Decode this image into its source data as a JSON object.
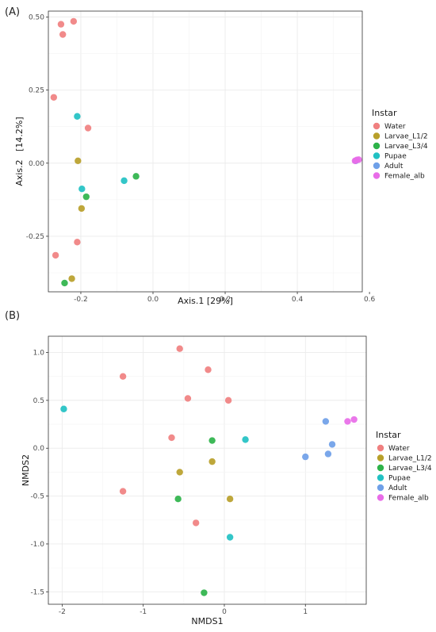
{
  "colors": {
    "Water": "#F08080",
    "Larvae_L1/2": "#B8A02A",
    "Larvae_L3/4": "#2EB34A",
    "Pupae": "#22C1C3",
    "Adult": "#6FA0E8",
    "Female_alb": "#E86CE8"
  },
  "chart_data": [
    {
      "type": "scatter",
      "panel_label": "(A)",
      "xlabel": "Axis.1   [29%]",
      "ylabel": "Axis.2   [14.2%]",
      "xlim": [
        -0.29,
        0.58
      ],
      "ylim": [
        -0.44,
        0.52
      ],
      "xticks": [
        -0.2,
        0.0,
        0.2,
        0.4,
        0.6
      ],
      "xtick_labels": [
        "-0.2",
        "0.0",
        "0.2",
        "0.4",
        "0.6"
      ],
      "yticks": [
        -0.25,
        0.0,
        0.25,
        0.5
      ],
      "ytick_labels": [
        "-0.25",
        "0.00",
        "0.25",
        "0.50"
      ],
      "grid": true,
      "legend": {
        "title": "Instar",
        "position": "right",
        "entries": [
          "Water",
          "Larvae_L1/2",
          "Larvae_L3/4",
          "Pupae",
          "Adult",
          "Female_alb"
        ]
      },
      "series": [
        {
          "name": "Water",
          "points": [
            [
              -0.255,
              0.475
            ],
            [
              -0.25,
              0.44
            ],
            [
              -0.22,
              0.485
            ],
            [
              -0.275,
              0.225
            ],
            [
              -0.18,
              0.12
            ],
            [
              -0.27,
              -0.315
            ],
            [
              -0.21,
              -0.27
            ]
          ]
        },
        {
          "name": "Larvae_L1/2",
          "points": [
            [
              -0.208,
              0.008
            ],
            [
              -0.198,
              -0.155
            ],
            [
              -0.225,
              -0.395
            ]
          ]
        },
        {
          "name": "Larvae_L3/4",
          "points": [
            [
              -0.185,
              -0.115
            ],
            [
              -0.047,
              -0.045
            ],
            [
              -0.245,
              -0.41
            ]
          ]
        },
        {
          "name": "Pupae",
          "points": [
            [
              -0.21,
              0.16
            ],
            [
              -0.197,
              -0.088
            ],
            [
              -0.08,
              -0.06
            ]
          ]
        },
        {
          "name": "Adult",
          "points": [
            [
              0.562,
              0.008
            ]
          ]
        },
        {
          "name": "Female_alb",
          "points": [
            [
              0.56,
              0.008
            ],
            [
              0.565,
              0.011
            ],
            [
              0.57,
              0.012
            ]
          ]
        }
      ]
    },
    {
      "type": "scatter",
      "panel_label": "(B)",
      "xlabel": "NMDS1",
      "ylabel": "NMDS2",
      "xlim": [
        -2.17,
        1.75
      ],
      "ylim": [
        -1.63,
        1.17
      ],
      "xticks": [
        -2,
        -1,
        0,
        1
      ],
      "xtick_labels": [
        "-2",
        "-1",
        "0",
        "1"
      ],
      "yticks": [
        -1.5,
        -1.0,
        -0.5,
        0.0,
        0.5,
        1.0
      ],
      "ytick_labels": [
        "-1.5",
        "-1.0",
        "-0.5",
        "0.0",
        "0.5",
        "1.0"
      ],
      "grid": true,
      "legend": {
        "title": "Instar",
        "position": "right",
        "entries": [
          "Water",
          "Larvae_L1/2",
          "Larvae_L3/4",
          "Pupae",
          "Adult",
          "Female_alb"
        ]
      },
      "series": [
        {
          "name": "Water",
          "points": [
            [
              -0.55,
              1.04
            ],
            [
              -0.2,
              0.82
            ],
            [
              -1.25,
              0.75
            ],
            [
              -0.45,
              0.52
            ],
            [
              0.05,
              0.5
            ],
            [
              -0.65,
              0.11
            ],
            [
              -1.25,
              -0.45
            ],
            [
              -0.35,
              -0.78
            ]
          ]
        },
        {
          "name": "Larvae_L1/2",
          "points": [
            [
              -0.15,
              -0.14
            ],
            [
              -0.55,
              -0.25
            ],
            [
              0.07,
              -0.53
            ]
          ]
        },
        {
          "name": "Larvae_L3/4",
          "points": [
            [
              -0.15,
              0.08
            ],
            [
              -0.57,
              -0.53
            ],
            [
              -0.25,
              -1.51
            ]
          ]
        },
        {
          "name": "Pupae",
          "points": [
            [
              -1.98,
              0.41
            ],
            [
              0.26,
              0.09
            ],
            [
              0.07,
              -0.93
            ]
          ]
        },
        {
          "name": "Adult",
          "points": [
            [
              1.0,
              -0.09
            ],
            [
              1.25,
              0.28
            ],
            [
              1.33,
              0.04
            ],
            [
              1.28,
              -0.06
            ]
          ]
        },
        {
          "name": "Female_alb",
          "points": [
            [
              1.52,
              0.28
            ],
            [
              1.6,
              0.3
            ]
          ]
        }
      ]
    }
  ]
}
